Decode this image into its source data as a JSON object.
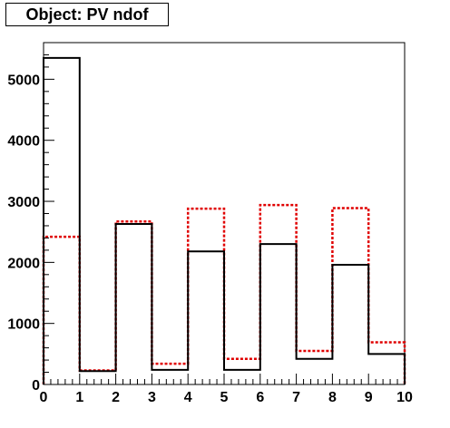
{
  "chart_data": {
    "type": "histogram",
    "title": "Object: PV ndof",
    "xlabel": "",
    "ylabel": "",
    "xlim": [
      0,
      10
    ],
    "ylim": [
      0,
      5600
    ],
    "x_ticks": [
      "0",
      "1",
      "2",
      "3",
      "4",
      "5",
      "6",
      "7",
      "8",
      "9",
      "10"
    ],
    "y_ticks": [
      {
        "value": 0,
        "label": "0"
      },
      {
        "value": 1000,
        "label": "1000"
      },
      {
        "value": 2000,
        "label": "2000"
      },
      {
        "value": 3000,
        "label": "3000"
      },
      {
        "value": 4000,
        "label": "4000"
      },
      {
        "value": 5000,
        "label": "5000"
      }
    ],
    "bin_edges": [
      0,
      1,
      2,
      3,
      4,
      5,
      6,
      7,
      8,
      9,
      10
    ],
    "series": [
      {
        "style": "solid",
        "color": "#000000",
        "values": [
          5350,
          220,
          2630,
          240,
          2180,
          240,
          2300,
          420,
          1960,
          500
        ]
      },
      {
        "style": "dashed",
        "color": "#e00000",
        "values": [
          2420,
          230,
          2670,
          340,
          2880,
          420,
          2940,
          550,
          2890,
          690
        ]
      }
    ],
    "grid": false,
    "legend": "none"
  }
}
